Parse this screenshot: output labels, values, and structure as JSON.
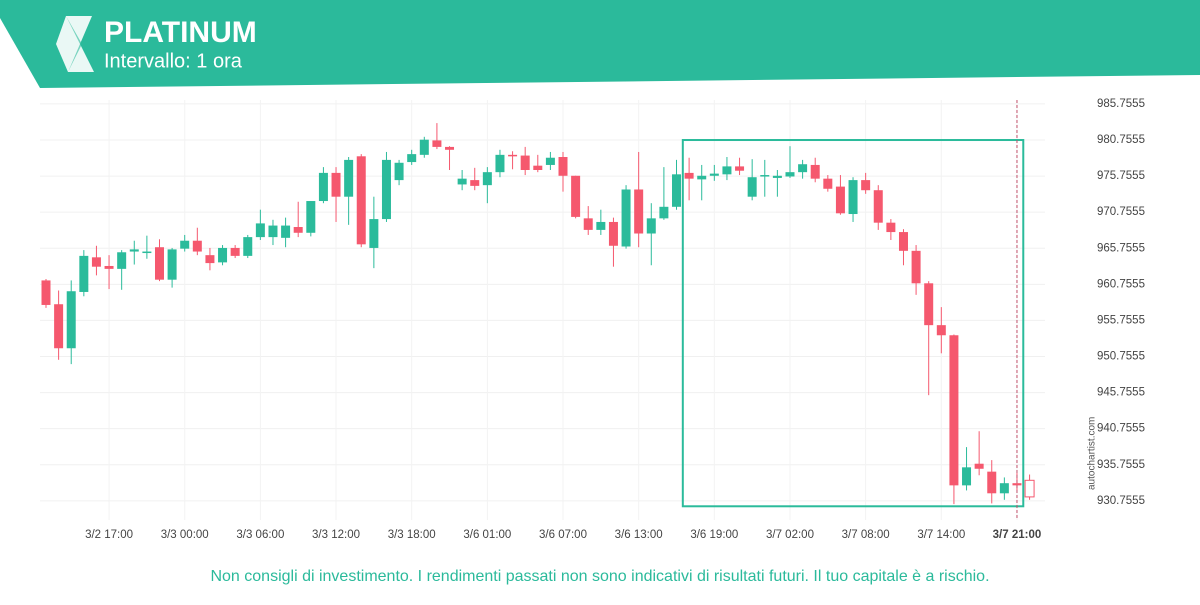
{
  "header": {
    "title": "PLATINUM",
    "subtitle": "Intervallo: 1 ora"
  },
  "footer": {
    "disclaimer": "Non consigli di investimento. I rendimenti passati non sono indicativi di risultati futuri. Il tuo capitale è a rischio."
  },
  "watermark": "autochartist.com",
  "chart_data": {
    "type": "candlestick",
    "categories": [
      null,
      null,
      null,
      null,
      null,
      "3/2 17:00",
      null,
      null,
      null,
      null,
      null,
      "3/3 00:00",
      null,
      null,
      null,
      null,
      null,
      "3/3 06:00",
      null,
      null,
      null,
      null,
      null,
      "3/3 12:00",
      null,
      null,
      null,
      null,
      null,
      "3/3 18:00",
      null,
      null,
      null,
      null,
      null,
      "3/6 01:00",
      null,
      null,
      null,
      null,
      null,
      "3/6 07:00",
      null,
      null,
      null,
      null,
      null,
      "3/6 13:00",
      null,
      null,
      null,
      null,
      null,
      "3/6 19:00",
      null,
      null,
      null,
      null,
      null,
      "3/7 02:00",
      null,
      null,
      null,
      null,
      null,
      "3/7 08:00",
      null,
      null,
      null,
      null,
      null,
      "3/7 14:00",
      null,
      null,
      null,
      null,
      null,
      "3/7 21:00",
      null
    ],
    "open": [
      961.3,
      958.0,
      951.9,
      959.7,
      964.5,
      963.3,
      962.9,
      965.3,
      965.2,
      965.9,
      961.4,
      965.7,
      966.8,
      964.8,
      963.8,
      965.8,
      964.7,
      967.3,
      967.3,
      967.2,
      968.7,
      967.9,
      972.3,
      976.2,
      972.9,
      978.5,
      965.8,
      969.8,
      975.2,
      977.7,
      978.7,
      980.7,
      979.8,
      974.6,
      975.2,
      974.5,
      976.3,
      978.7,
      978.6,
      977.2,
      977.3,
      978.4,
      975.8,
      969.9,
      968.3,
      969.4,
      966.0,
      973.9,
      967.8,
      969.9,
      971.5,
      976.2,
      975.3,
      975.8,
      976.0,
      977.1,
      972.9,
      975.7,
      975.5,
      975.7,
      976.3,
      977.3,
      975.4,
      974.3,
      970.5,
      975.2,
      973.8,
      969.3,
      968.0,
      965.4,
      960.9,
      955.1,
      953.7,
      932.9,
      935.9,
      934.8,
      931.8,
      933.2,
      933.6
    ],
    "high": [
      961.5,
      959.9,
      961.3,
      965.5,
      966.1,
      964.8,
      965.5,
      966.8,
      967.5,
      967.0,
      965.8,
      967.6,
      968.6,
      965.8,
      966.2,
      966.2,
      967.6,
      971.1,
      969.7,
      970.0,
      972.2,
      972.3,
      977.0,
      977.0,
      978.4,
      978.8,
      972.9,
      979.1,
      978.0,
      979.4,
      981.2,
      983.1,
      979.9,
      976.6,
      976.9,
      977.0,
      979.4,
      979.2,
      979.8,
      978.7,
      979.1,
      979.1,
      975.8,
      971.6,
      971.1,
      970.0,
      974.5,
      979.1,
      972.0,
      977.0,
      978.0,
      978.3,
      977.3,
      977.3,
      978.4,
      978.3,
      978.1,
      978.0,
      976.6,
      979.9,
      978.0,
      978.3,
      975.9,
      975.9,
      975.6,
      976.2,
      974.5,
      969.8,
      968.4,
      966.2,
      961.2,
      957.6,
      953.8,
      938.2,
      940.4,
      936.4,
      934.0,
      934.6,
      934.4
    ],
    "low": [
      957.5,
      950.3,
      949.7,
      959.1,
      962.0,
      960.1,
      960.0,
      963.5,
      964.3,
      961.2,
      960.3,
      965.3,
      964.8,
      962.7,
      963.4,
      964.4,
      964.4,
      966.9,
      966.2,
      965.9,
      967.3,
      967.4,
      972.0,
      969.4,
      969.0,
      965.9,
      963.0,
      969.4,
      974.5,
      977.3,
      978.3,
      979.5,
      976.6,
      973.8,
      973.8,
      972.0,
      975.6,
      976.7,
      975.9,
      976.3,
      976.6,
      973.6,
      969.9,
      967.6,
      967.6,
      963.2,
      965.7,
      965.9,
      963.4,
      969.7,
      971.1,
      972.4,
      972.4,
      975.1,
      975.2,
      975.9,
      972.4,
      972.9,
      972.9,
      975.5,
      975.4,
      974.9,
      973.6,
      970.4,
      969.4,
      973.3,
      968.3,
      966.9,
      963.4,
      959.3,
      945.4,
      951.2,
      930.3,
      932.2,
      934.3,
      930.4,
      930.9,
      932.2,
      930.9
    ],
    "close": [
      957.9,
      951.9,
      959.8,
      964.7,
      963.2,
      962.9,
      965.2,
      965.6,
      965.3,
      961.4,
      965.6,
      966.8,
      965.3,
      963.7,
      965.8,
      964.7,
      967.3,
      969.2,
      968.9,
      968.9,
      967.9,
      972.3,
      976.2,
      972.9,
      978.0,
      966.3,
      969.8,
      978.0,
      977.6,
      978.8,
      980.8,
      979.8,
      979.4,
      975.4,
      974.4,
      976.3,
      978.7,
      978.5,
      976.6,
      976.6,
      978.3,
      975.8,
      970.1,
      968.3,
      969.4,
      966.1,
      973.9,
      967.8,
      969.9,
      971.5,
      976.0,
      975.4,
      975.8,
      976.1,
      977.1,
      976.5,
      975.6,
      975.9,
      975.8,
      976.3,
      977.4,
      975.4,
      974.0,
      970.6,
      975.2,
      973.8,
      969.3,
      968.0,
      965.4,
      960.9,
      955.1,
      953.7,
      932.9,
      935.4,
      935.2,
      931.8,
      933.2,
      932.9,
      931.3
    ],
    "up_color": "#2bbb9b",
    "down_color": "#f5586e",
    "ylim": [
      928.1,
      986.3
    ],
    "yticks": [
      930.7555,
      935.7555,
      940.7555,
      945.7555,
      950.7555,
      955.7555,
      960.7555,
      965.7555,
      970.7555,
      975.7555,
      980.7555,
      985.7555
    ],
    "grid": true,
    "pattern": {
      "start": 50.5,
      "end": 77.5,
      "high": 980.7555,
      "low": 930.0,
      "color": "#2bbb9b"
    },
    "current_index": 77
  }
}
